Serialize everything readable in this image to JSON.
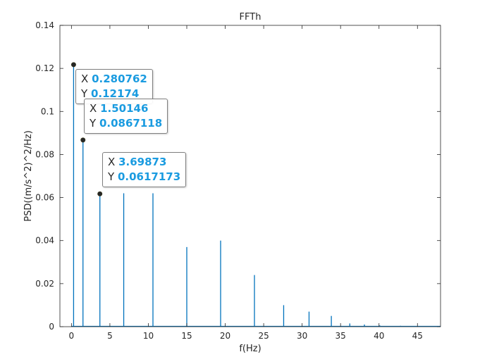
{
  "chart_data": {
    "type": "line",
    "title": "FFTh",
    "xlabel": "f(Hz)",
    "ylabel": "PSD((m/s^2)^2/Hz)",
    "xlim": [
      -1.5,
      48
    ],
    "ylim": [
      0,
      0.14
    ],
    "xticks": [
      0,
      5,
      10,
      15,
      20,
      25,
      30,
      35,
      40,
      45
    ],
    "yticks": [
      0,
      0.02,
      0.04,
      0.06,
      0.08,
      0.1,
      0.12,
      0.14
    ],
    "xtick_labels": [
      "0",
      "5",
      "10",
      "15",
      "20",
      "25",
      "30",
      "35",
      "40",
      "45"
    ],
    "ytick_labels": [
      "0",
      "0.02",
      "0.04",
      "0.06",
      "0.08",
      "0.1",
      "0.12",
      "0.14"
    ],
    "grid": false,
    "line_color": "#0072bd",
    "series": [
      {
        "values": [
          {
            "x": 0.28,
            "y": 0.12174
          },
          {
            "x": 1.5,
            "y": 0.0867
          },
          {
            "x": 3.7,
            "y": 0.0617
          },
          {
            "x": 6.8,
            "y": 0.062
          },
          {
            "x": 10.6,
            "y": 0.062
          },
          {
            "x": 15.0,
            "y": 0.037
          },
          {
            "x": 19.4,
            "y": 0.04
          },
          {
            "x": 23.8,
            "y": 0.024
          },
          {
            "x": 27.6,
            "y": 0.01
          },
          {
            "x": 30.9,
            "y": 0.007
          },
          {
            "x": 33.8,
            "y": 0.005
          },
          {
            "x": 36.2,
            "y": 0.0015
          },
          {
            "x": 38.1,
            "y": 0.001
          },
          {
            "x": 40.1,
            "y": 0.0006
          },
          {
            "x": 42.8,
            "y": 0.0004
          },
          {
            "x": 45.6,
            "y": 0.0003
          }
        ]
      }
    ],
    "datatips": [
      {
        "x_label": "X",
        "y_label": "Y",
        "x_text": "0.280762",
        "y_text": "0.12174",
        "x": 0.280762,
        "y": 0.12174
      },
      {
        "x_label": "X",
        "y_label": "Y",
        "x_text": "1.50146",
        "y_text": "0.0867118",
        "x": 1.50146,
        "y": 0.0867118
      },
      {
        "x_label": "X",
        "y_label": "Y",
        "x_text": "3.69873",
        "y_text": "0.0617173",
        "x": 3.69873,
        "y": 0.0617173
      }
    ]
  }
}
